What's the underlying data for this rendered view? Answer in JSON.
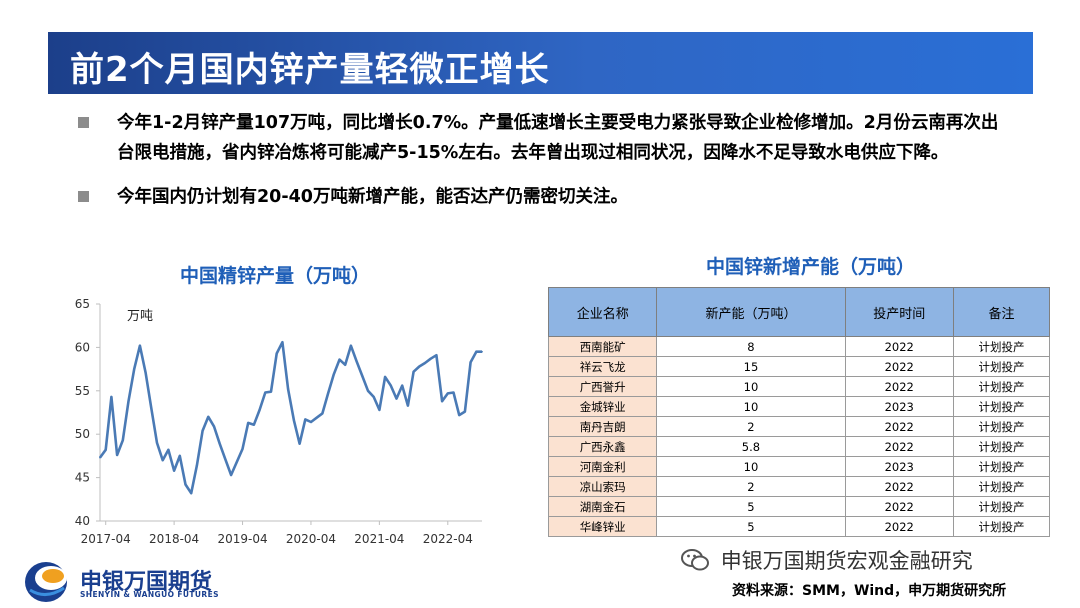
{
  "slide": {
    "title": "前2个月国内锌产量轻微正增长",
    "bullets": [
      "今年1-2月锌产量107万吨，同比增长0.7%。产量低速增长主要受电力紧张导致企业检修增加。2月份云南再次出台限电措施，省内锌冶炼将可能减产5-15%左右。去年曾出现过相同状况，因降水不足导致水电供应下降。",
      "今年国内仍计划有20-40万吨新增产能，能否达产仍需密切关注。"
    ]
  },
  "chart_data": {
    "type": "line",
    "title": "中国精锌产量（万吨）",
    "unit_label": "万吨",
    "color": "#4a7ab5",
    "xlim": [
      "2017-03",
      "2022-10"
    ],
    "ylim": [
      40,
      65
    ],
    "yticks": [
      40,
      45,
      50,
      55,
      60,
      65
    ],
    "xticks": [
      "2017-04",
      "2018-04",
      "2019-04",
      "2020-04",
      "2021-04",
      "2022-04"
    ],
    "grid": false,
    "series": [
      {
        "x": [
          "2017-03",
          "2017-04",
          "2017-05",
          "2017-06",
          "2017-07",
          "2017-08",
          "2017-09",
          "2017-10",
          "2017-11",
          "2017-12",
          "2018-01",
          "2018-02",
          "2018-03",
          "2018-04",
          "2018-05",
          "2018-06",
          "2018-07",
          "2018-08",
          "2018-09",
          "2018-10",
          "2018-11",
          "2018-12",
          "2019-01",
          "2019-02",
          "2019-03",
          "2019-04",
          "2019-05",
          "2019-06",
          "2019-07",
          "2019-08",
          "2019-09",
          "2019-10",
          "2019-11",
          "2019-12",
          "2020-01",
          "2020-02",
          "2020-03",
          "2020-04",
          "2020-05",
          "2020-06",
          "2020-07",
          "2020-08",
          "2020-09",
          "2020-10",
          "2020-11",
          "2020-12",
          "2021-01",
          "2021-02",
          "2021-03",
          "2021-04",
          "2021-05",
          "2021-06",
          "2021-07",
          "2021-08",
          "2021-09",
          "2021-10",
          "2021-11",
          "2021-12",
          "2022-01",
          "2022-02",
          "2022-03",
          "2022-04",
          "2022-05",
          "2022-06",
          "2022-07",
          "2022-08",
          "2022-09",
          "2022-10"
        ],
        "values": [
          47.3,
          48.2,
          54.3,
          47.6,
          49.3,
          53.8,
          57.5,
          60.2,
          57.1,
          53.0,
          49.0,
          47.0,
          48.2,
          45.8,
          47.5,
          44.2,
          43.2,
          46.4,
          50.4,
          52.0,
          50.9,
          48.9,
          47.1,
          45.3,
          46.8,
          48.3,
          51.3,
          51.1,
          52.8,
          54.8,
          54.9,
          59.3,
          60.6,
          55.2,
          51.6,
          48.9,
          51.7,
          51.4,
          51.9,
          52.4,
          54.7,
          56.9,
          58.6,
          58.0,
          60.2,
          58.4,
          56.7,
          55.0,
          54.3,
          52.8,
          56.6,
          55.6,
          54.1,
          55.6,
          53.3,
          57.2,
          57.8,
          58.2,
          58.7,
          59.1,
          53.8,
          54.7,
          54.8,
          52.2,
          52.6,
          58.3,
          59.5,
          59.5
        ]
      }
    ]
  },
  "table": {
    "title": "中国锌新增产能（万吨）",
    "headers": [
      "企业名称",
      "新产能（万吨）",
      "投产时间",
      "备注"
    ],
    "rows": [
      [
        "西南能矿",
        "8",
        "2022",
        "计划投产"
      ],
      [
        "祥云飞龙",
        "15",
        "2022",
        "计划投产"
      ],
      [
        "广西誉升",
        "10",
        "2022",
        "计划投产"
      ],
      [
        "金城锌业",
        "10",
        "2023",
        "计划投产"
      ],
      [
        "南丹吉朗",
        "2",
        "2022",
        "计划投产"
      ],
      [
        "广西永鑫",
        "5.8",
        "2022",
        "计划投产"
      ],
      [
        "河南金利",
        "10",
        "2023",
        "计划投产"
      ],
      [
        "凉山索玛",
        "2",
        "2022",
        "计划投产"
      ],
      [
        "湖南金石",
        "5",
        "2022",
        "计划投产"
      ],
      [
        "华峰锌业",
        "5",
        "2022",
        "计划投产"
      ]
    ]
  },
  "footer": {
    "logo_cn": "申银万国期货",
    "logo_en": "SHENYIN & WANGUO FUTURES",
    "wechat": "申银万国期货宏观金融研究",
    "source": "资料来源：SMM，Wind，申万期货研究所"
  }
}
